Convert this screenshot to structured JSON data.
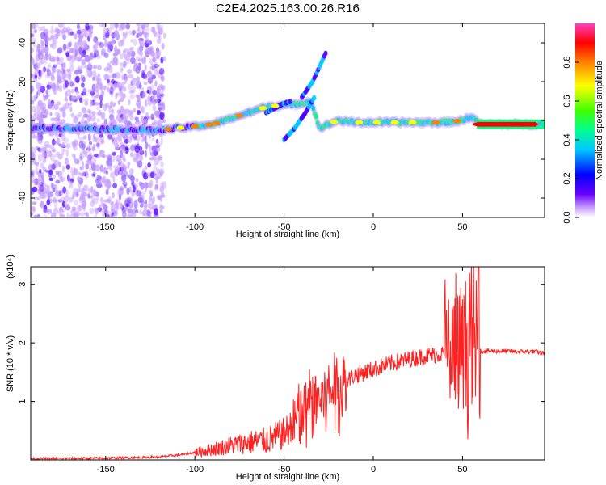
{
  "title": "C2E4.2025.163.00.26.R16",
  "chart_data": [
    {
      "type": "heatmap",
      "xlabel": "Height of straight line (km)",
      "ylabel": "Frequency (Hz)",
      "xlim": [
        -192,
        96
      ],
      "ylim": [
        -50,
        50
      ],
      "xticks": [
        -150,
        -100,
        -50,
        0,
        50
      ],
      "yticks": [
        -40,
        -20,
        0,
        20,
        40
      ],
      "colorbar": {
        "label": "Normalized spectral amplitude",
        "range": [
          0,
          1
        ],
        "ticks": [
          "0.0",
          "0.2",
          "0.4",
          "0.6",
          "0.8"
        ],
        "colors": [
          "#ffffff",
          "#c8a0ff",
          "#5000ff",
          "#0000ff",
          "#00c8ff",
          "#00ff80",
          "#40ff00",
          "#ffff00",
          "#ff8000",
          "#ff0000",
          "#ff0080",
          "#ff40c0"
        ]
      },
      "ridge": {
        "x": [
          -192,
          -160,
          -130,
          -120,
          -110,
          -100,
          -90,
          -80,
          -70,
          -60,
          -50,
          -45,
          -40,
          -35,
          -30,
          -25,
          -20,
          -10,
          0,
          10,
          20,
          30,
          40,
          50,
          55,
          60,
          70,
          80,
          96
        ],
        "y": [
          -4,
          -4,
          -5,
          -5,
          -4,
          -3,
          -2,
          1,
          4,
          7,
          8,
          8,
          9,
          10,
          -4,
          -2,
          0,
          -1,
          -1,
          -1,
          -1,
          -1,
          -1,
          0,
          2,
          -2,
          -2,
          -2,
          -2
        ]
      }
    },
    {
      "type": "line",
      "xlabel": "Height of straight line (km)",
      "ylabel": "SNR (10 * v/v)",
      "y_multiplier": "(x10⁴)",
      "xlim": [
        -192,
        96
      ],
      "ylim": [
        0,
        3.3
      ],
      "xticks": [
        -150,
        -100,
        -50,
        0,
        50
      ],
      "yticks": [
        1,
        2,
        3
      ],
      "color": "#ff2020",
      "envelope": {
        "x": [
          -192,
          -150,
          -120,
          -105,
          -90,
          -80,
          -70,
          -60,
          -50,
          -40,
          -35,
          -30,
          -25,
          -20,
          -15,
          -10,
          0,
          10,
          20,
          30,
          40,
          45,
          50,
          52,
          55,
          57,
          58,
          60,
          70,
          80,
          90,
          96
        ],
        "y": [
          0.02,
          0.03,
          0.05,
          0.1,
          0.18,
          0.25,
          0.3,
          0.33,
          0.45,
          0.75,
          0.95,
          1.05,
          1.15,
          1.25,
          1.35,
          1.45,
          1.55,
          1.65,
          1.72,
          1.78,
          1.82,
          1.8,
          1.85,
          1.9,
          2.0,
          1.9,
          1.9,
          1.86,
          1.86,
          1.85,
          1.85,
          1.82
        ]
      },
      "peak": {
        "x": 59,
        "y": 3.3
      }
    }
  ]
}
